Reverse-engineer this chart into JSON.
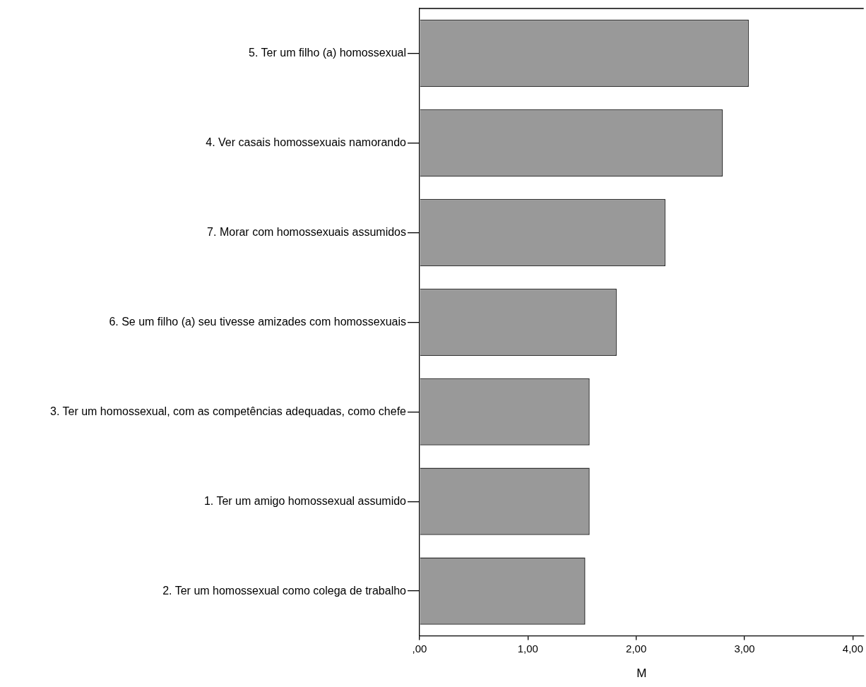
{
  "chart_data": {
    "type": "bar",
    "orientation": "horizontal",
    "xlabel": "M",
    "categories": [
      "5. Ter um filho (a) homossexual",
      "4. Ver casais homossexuais namorando",
      "7. Morar com homossexuais assumidos",
      "6. Se um filho (a) seu tivesse amizades com homossexuais",
      "3. Ter um homossexual, com as competências adequadas, como chefe",
      "1. Ter um amigo homossexual assumido",
      "2. Ter um homossexual como colega de trabalho"
    ],
    "values": [
      3.04,
      2.8,
      2.27,
      1.82,
      1.57,
      1.57,
      1.53
    ],
    "color": "#999999",
    "xlim": [
      0,
      4.1
    ],
    "xticks": [
      {
        "value": 0,
        "label": ",00"
      },
      {
        "value": 1,
        "label": "1,00"
      },
      {
        "value": 2,
        "label": "2,00"
      },
      {
        "value": 3,
        "label": "3,00"
      },
      {
        "value": 4,
        "label": "4,00"
      }
    ],
    "grid": false,
    "legend": false
  }
}
